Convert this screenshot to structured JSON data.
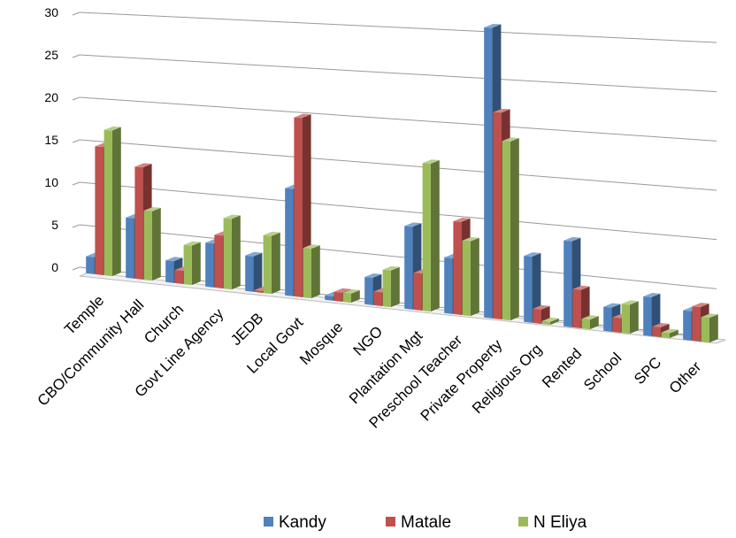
{
  "chart_data": {
    "type": "bar",
    "style": "3d-clustered-column",
    "categories": [
      "Temple",
      "CBO/Community Hall",
      "Church",
      "Govt Line Agency",
      "JEDB",
      "Local Govt",
      "Mosque",
      "NGO",
      "Plantation Mgt",
      "Preschool Teacher",
      "Private Property",
      "Religious Org",
      "Rented",
      "School",
      "SPC",
      "Other"
    ],
    "series": [
      {
        "name": "Kandy",
        "color": "#4f81bd",
        "values": [
          2,
          7,
          2.5,
          5,
          4,
          12,
          0.5,
          3,
          9,
          6,
          31,
          7,
          9,
          2.5,
          4,
          3
        ]
      },
      {
        "name": "Matale",
        "color": "#c0504d",
        "values": [
          15,
          13,
          1.5,
          6,
          0.2,
          20,
          1,
          1.5,
          4,
          10,
          22,
          1.5,
          4,
          1.5,
          1,
          3.5
        ]
      },
      {
        "name": "N Eliya",
        "color": "#9bbb59",
        "values": [
          17,
          8,
          4.5,
          8,
          6.5,
          5.5,
          1,
          4,
          16,
          8,
          19,
          0.3,
          1,
          3,
          0.5,
          2.5
        ]
      }
    ],
    "y_ticks": [
      "0",
      "5",
      "10",
      "15",
      "20",
      "25",
      "30"
    ],
    "ylim": [
      0,
      30
    ],
    "grid": true,
    "legend_position": "bottom"
  }
}
